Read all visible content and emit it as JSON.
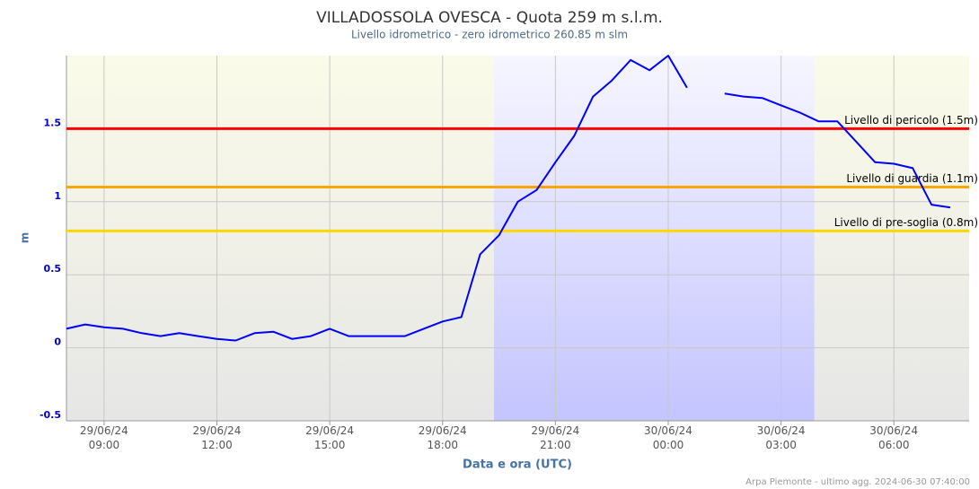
{
  "chart_data": {
    "type": "line",
    "title": "VILLADOSSOLA OVESCA - Quota 259 m s.l.m.",
    "subtitle": "Livello idrometrico - zero idrometrico 260.85 m slm",
    "y_label": "m",
    "x_label": "Data e ora (UTC)",
    "credits": "Arpa Piemonte - ultimo agg. 2024-06-30 07:40:00",
    "x": [
      "2024-06-29 08:00",
      "2024-06-29 08:30",
      "2024-06-29 09:00",
      "2024-06-29 09:30",
      "2024-06-29 10:00",
      "2024-06-29 10:30",
      "2024-06-29 11:00",
      "2024-06-29 11:30",
      "2024-06-29 12:00",
      "2024-06-29 12:30",
      "2024-06-29 13:00",
      "2024-06-29 13:30",
      "2024-06-29 14:00",
      "2024-06-29 14:30",
      "2024-06-29 15:00",
      "2024-06-29 15:30",
      "2024-06-29 16:00",
      "2024-06-29 16:30",
      "2024-06-29 17:00",
      "2024-06-29 17:30",
      "2024-06-29 18:00",
      "2024-06-29 18:30",
      "2024-06-29 19:00",
      "2024-06-29 19:30",
      "2024-06-29 20:00",
      "2024-06-29 20:30",
      "2024-06-29 21:00",
      "2024-06-29 21:30",
      "2024-06-29 22:00",
      "2024-06-29 22:30",
      "2024-06-29 23:00",
      "2024-06-29 23:30",
      "2024-06-30 00:00",
      "2024-06-30 00:30",
      "2024-06-30 01:00",
      "2024-06-30 01:30",
      "2024-06-30 02:00",
      "2024-06-30 02:30",
      "2024-06-30 03:00",
      "2024-06-30 03:30",
      "2024-06-30 04:00",
      "2024-06-30 04:30",
      "2024-06-30 05:00",
      "2024-06-30 05:30",
      "2024-06-30 06:00",
      "2024-06-30 06:30",
      "2024-06-30 07:00",
      "2024-06-30 07:30"
    ],
    "series": [
      {
        "color": "#0000ff",
        "values": [
          0.13,
          0.16,
          0.14,
          0.13,
          0.1,
          0.08,
          0.1,
          0.08,
          0.06,
          0.05,
          0.1,
          0.11,
          0.06,
          0.08,
          0.13,
          0.08,
          0.08,
          0.08,
          0.08,
          0.13,
          0.18,
          0.21,
          0.64,
          0.77,
          1.0,
          1.08,
          1.27,
          1.45,
          1.72,
          1.83,
          1.97,
          1.9,
          2.0,
          1.78,
          null,
          1.74,
          1.72,
          1.71,
          1.66,
          1.61,
          1.55,
          1.55,
          1.41,
          1.27,
          1.26,
          1.23,
          0.98,
          0.96
        ]
      }
    ],
    "xlim": [
      "2024-06-29 08:00",
      "2024-06-30 08:00"
    ],
    "xticks": [
      {
        "value": "2024-06-29 09:00",
        "label": "29/06/24 09:00"
      },
      {
        "value": "2024-06-29 12:00",
        "label": "29/06/24 12:00"
      },
      {
        "value": "2024-06-29 15:00",
        "label": "29/06/24 15:00"
      },
      {
        "value": "2024-06-29 18:00",
        "label": "29/06/24 18:00"
      },
      {
        "value": "2024-06-29 21:00",
        "label": "29/06/24 21:00"
      },
      {
        "value": "2024-06-30 00:00",
        "label": "30/06/24 00:00"
      },
      {
        "value": "2024-06-30 03:00",
        "label": "30/06/24 03:00"
      },
      {
        "value": "2024-06-30 06:00",
        "label": "30/06/24 06:00"
      }
    ],
    "ylim": [
      -0.5,
      2.0
    ],
    "yticks": [
      -0.5,
      0,
      0.5,
      1,
      1.5
    ],
    "grid": true,
    "night_band": [
      "2024-06-29 19:22",
      "2024-06-30 03:53"
    ],
    "thresholds": [
      {
        "value": 1.5,
        "label": "Livello di pericolo (1.5m)",
        "color": "#ff0000"
      },
      {
        "value": 1.1,
        "label": "Livello di guardia (1.1m)",
        "color": "#ffa500"
      },
      {
        "value": 0.8,
        "label": "Livello di pre-soglia (0.8m)",
        "color": "#ffd700"
      }
    ]
  }
}
